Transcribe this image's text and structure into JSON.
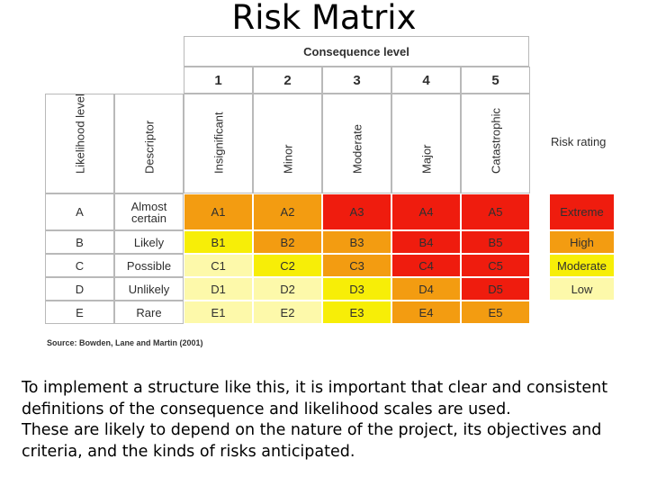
{
  "title": "Risk Matrix",
  "matrix": {
    "consequence_title": "Consequence level",
    "consequence_numbers": [
      "1",
      "2",
      "3",
      "4",
      "5"
    ],
    "likelihood_header": "Likelihood level",
    "descriptor_header": "Descriptor",
    "consequence_names": [
      "Insignificant",
      "Minor",
      "Moderate",
      "Major",
      "Catastrophic"
    ],
    "rows": [
      {
        "level": "A",
        "descriptor": "Almost certain",
        "cells": [
          "A1",
          "A2",
          "A3",
          "A4",
          "A5"
        ]
      },
      {
        "level": "B",
        "descriptor": "Likely",
        "cells": [
          "B1",
          "B2",
          "B3",
          "B4",
          "B5"
        ]
      },
      {
        "level": "C",
        "descriptor": "Possible",
        "cells": [
          "C1",
          "C2",
          "C3",
          "C4",
          "C5"
        ]
      },
      {
        "level": "D",
        "descriptor": "Unlikely",
        "cells": [
          "D1",
          "D2",
          "D3",
          "D4",
          "D5"
        ]
      },
      {
        "level": "E",
        "descriptor": "Rare",
        "cells": [
          "E1",
          "E2",
          "E3",
          "E4",
          "E5"
        ]
      }
    ],
    "cell_ratings": [
      [
        "High",
        "High",
        "Extreme",
        "Extreme",
        "Extreme"
      ],
      [
        "Moderate",
        "High",
        "High",
        "Extreme",
        "Extreme"
      ],
      [
        "Low",
        "Moderate",
        "High",
        "Extreme",
        "Extreme"
      ],
      [
        "Low",
        "Low",
        "Moderate",
        "High",
        "Extreme"
      ],
      [
        "Low",
        "Low",
        "Moderate",
        "High",
        "High"
      ]
    ],
    "source": "Source: Bowden, Lane and Martin (2001)"
  },
  "risk_rating": {
    "title": "Risk rating",
    "levels": [
      {
        "label": "Extreme",
        "color": "#ef1c0e"
      },
      {
        "label": "High",
        "color": "#f39c11"
      },
      {
        "label": "Moderate",
        "color": "#f7ee07"
      },
      {
        "label": "Low",
        "color": "#fdf9aa"
      }
    ]
  },
  "body_text": {
    "paragraph1": "To implement a structure like this, it is important that clear and consistent definitions of the consequence and likelihood scales are used.",
    "paragraph2": "These are likely to depend on the nature of the project, its objectives and criteria, and the kinds of risks anticipated."
  }
}
